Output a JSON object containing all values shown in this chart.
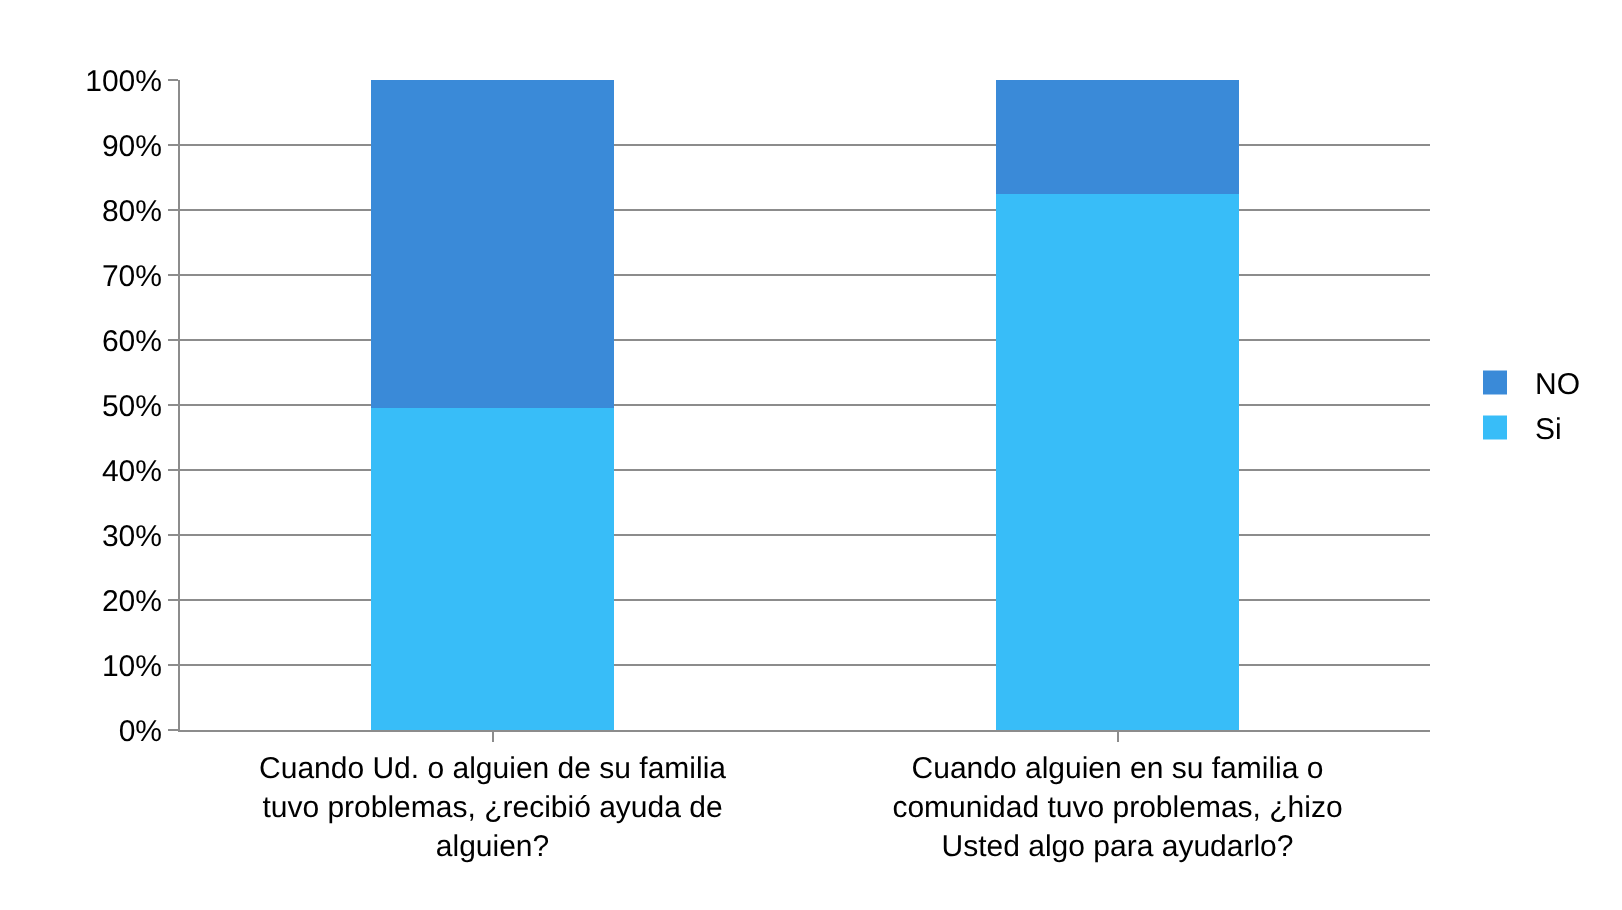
{
  "chart_data": {
    "type": "bar",
    "stacked": true,
    "categories": [
      "Cuando Ud. o alguien de su familia tuvo problemas, ¿recibió ayuda de alguien?",
      "Cuando alguien en su familia o comunidad tuvo problemas, ¿hizo Usted algo para ayudarlo?"
    ],
    "series": [
      {
        "name": "Si",
        "color": "#38bdf8",
        "values": [
          49.5,
          82.5
        ]
      },
      {
        "name": "NO",
        "color": "#3a8ad8",
        "values": [
          50.5,
          17.5
        ]
      }
    ],
    "ylim": [
      0,
      100
    ],
    "yticks": [
      {
        "value": 0,
        "label": "0%"
      },
      {
        "value": 10,
        "label": "10%"
      },
      {
        "value": 20,
        "label": "20%"
      },
      {
        "value": 30,
        "label": "30%"
      },
      {
        "value": 40,
        "label": "40%"
      },
      {
        "value": 50,
        "label": "50%"
      },
      {
        "value": 60,
        "label": "60%"
      },
      {
        "value": 70,
        "label": "70%"
      },
      {
        "value": 80,
        "label": "80%"
      },
      {
        "value": 90,
        "label": "90%"
      },
      {
        "value": 100,
        "label": "100%"
      }
    ],
    "grid": "y",
    "legend": "right"
  }
}
